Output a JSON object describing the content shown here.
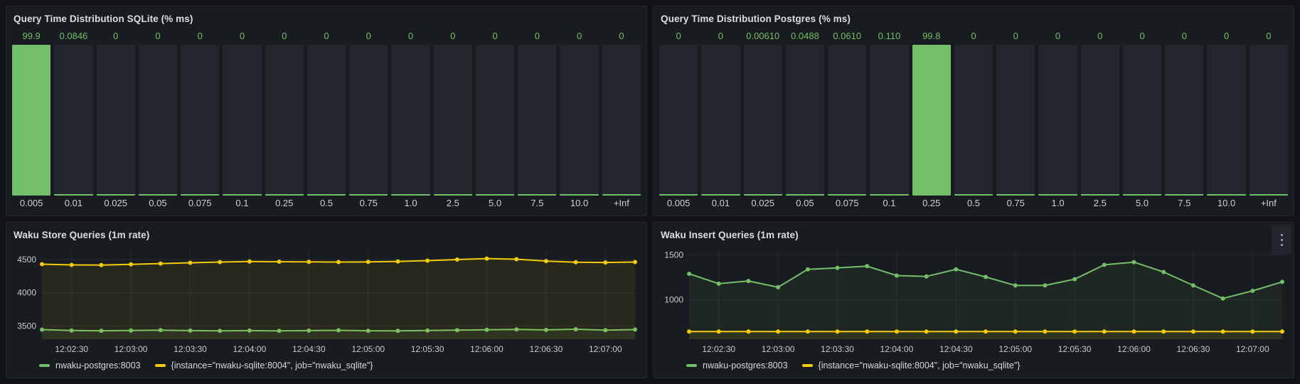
{
  "colors": {
    "background": "#111217",
    "panel": "#181b1f",
    "panel_border": "#25272e",
    "bar_track": "#22252b",
    "green": "#73bf69",
    "yellow": "#f2cc0c",
    "title_text": "#dcdde1",
    "tick_text": "#c9cace"
  },
  "chart_data": [
    {
      "id": "hist-sqlite",
      "type": "bar",
      "title": "Query Time Distribution SQLite (% ms)",
      "categories": [
        "0.005",
        "0.01",
        "0.025",
        "0.05",
        "0.075",
        "0.1",
        "0.25",
        "0.5",
        "0.75",
        "1.0",
        "2.5",
        "5.0",
        "7.5",
        "10.0",
        "+Inf"
      ],
      "values": [
        99.9,
        0.0846,
        0,
        0,
        0,
        0,
        0,
        0,
        0,
        0,
        0,
        0,
        0,
        0,
        0
      ],
      "value_labels": [
        "99.9",
        "0.0846",
        "0",
        "0",
        "0",
        "0",
        "0",
        "0",
        "0",
        "0",
        "0",
        "0",
        "0",
        "0",
        "0"
      ],
      "ylim": [
        0,
        100
      ],
      "bar_color": "#73bf69",
      "track_color": "#22252b",
      "value_color": "#73bf69",
      "xlabel": "",
      "ylabel": ""
    },
    {
      "id": "hist-postgres",
      "type": "bar",
      "title": "Query Time Distribution Postgres (% ms)",
      "categories": [
        "0.005",
        "0.01",
        "0.025",
        "0.05",
        "0.075",
        "0.1",
        "0.25",
        "0.5",
        "0.75",
        "1.0",
        "2.5",
        "5.0",
        "7.5",
        "10.0",
        "+Inf"
      ],
      "values": [
        0,
        0,
        0.0061,
        0.0488,
        0.061,
        0.11,
        99.8,
        0,
        0,
        0,
        0,
        0,
        0,
        0,
        0
      ],
      "value_labels": [
        "0",
        "0",
        "0.00610",
        "0.0488",
        "0.0610",
        "0.110",
        "99.8",
        "0",
        "0",
        "0",
        "0",
        "0",
        "0",
        "0",
        "0"
      ],
      "ylim": [
        0,
        100
      ],
      "bar_color": "#73bf69",
      "track_color": "#22252b",
      "value_color": "#73bf69",
      "xlabel": "",
      "ylabel": ""
    },
    {
      "id": "line-store",
      "type": "line",
      "title": "Waku Store Queries (1m rate)",
      "x_times": [
        "12:02:15",
        "12:02:30",
        "12:02:45",
        "12:03:00",
        "12:03:15",
        "12:03:30",
        "12:03:45",
        "12:04:00",
        "12:04:15",
        "12:04:30",
        "12:04:45",
        "12:05:00",
        "12:05:15",
        "12:05:30",
        "12:05:45",
        "12:06:00",
        "12:06:15",
        "12:06:30",
        "12:06:45",
        "12:07:00",
        "12:07:15"
      ],
      "x_tick_labels": [
        "12:02:30",
        "12:03:00",
        "12:03:30",
        "12:04:00",
        "12:04:30",
        "12:05:00",
        "12:05:30",
        "12:06:00",
        "12:06:30",
        "12:07:00"
      ],
      "tick_indices": [
        1,
        3,
        5,
        7,
        9,
        11,
        13,
        15,
        17,
        19
      ],
      "ylim": [
        3300,
        4650
      ],
      "yticks": [
        3500,
        4000,
        4500
      ],
      "grid": true,
      "legend_position": "bottom",
      "series": [
        {
          "name": "nwaku-postgres:8003",
          "color": "#73bf69",
          "values": [
            3445,
            3432,
            3428,
            3432,
            3437,
            3430,
            3426,
            3430,
            3425,
            3430,
            3434,
            3428,
            3425,
            3431,
            3437,
            3443,
            3448,
            3440,
            3450,
            3436,
            3446
          ]
        },
        {
          "name": "{instance=\"nwaku-sqlite:8004\", job=\"nwaku_sqlite\"}",
          "color": "#f2cc0c",
          "values": [
            4430,
            4420,
            4418,
            4428,
            4440,
            4452,
            4462,
            4470,
            4468,
            4465,
            4462,
            4465,
            4472,
            4484,
            4500,
            4515,
            4505,
            4478,
            4460,
            4456,
            4462
          ]
        }
      ]
    },
    {
      "id": "line-insert",
      "type": "line",
      "title": "Waku Insert Queries (1m rate)",
      "x_times": [
        "12:02:15",
        "12:02:30",
        "12:02:45",
        "12:03:00",
        "12:03:15",
        "12:03:30",
        "12:03:45",
        "12:04:00",
        "12:04:15",
        "12:04:30",
        "12:04:45",
        "12:05:00",
        "12:05:15",
        "12:05:30",
        "12:05:45",
        "12:06:00",
        "12:06:15",
        "12:06:30",
        "12:06:45",
        "12:07:00",
        "12:07:15"
      ],
      "x_tick_labels": [
        "12:02:30",
        "12:03:00",
        "12:03:30",
        "12:04:00",
        "12:04:30",
        "12:05:00",
        "12:05:30",
        "12:06:00",
        "12:06:30",
        "12:07:00"
      ],
      "tick_indices": [
        1,
        3,
        5,
        7,
        9,
        11,
        13,
        15,
        17,
        19
      ],
      "ylim": [
        560,
        1560
      ],
      "yticks": [
        1000,
        1500
      ],
      "grid": true,
      "legend_position": "bottom",
      "has_menu": true,
      "series": [
        {
          "name": "nwaku-postgres:8003",
          "color": "#73bf69",
          "values": [
            1290,
            1180,
            1210,
            1140,
            1340,
            1355,
            1375,
            1270,
            1260,
            1340,
            1255,
            1160,
            1160,
            1230,
            1390,
            1420,
            1310,
            1160,
            1015,
            1100,
            1200
          ]
        },
        {
          "name": "{instance=\"nwaku-sqlite:8004\", job=\"nwaku_sqlite\"}",
          "color": "#f2cc0c",
          "values": [
            645,
            645,
            645,
            645,
            645,
            645,
            645,
            645,
            645,
            645,
            645,
            645,
            645,
            645,
            645,
            645,
            645,
            645,
            645,
            645,
            645
          ]
        }
      ]
    }
  ]
}
